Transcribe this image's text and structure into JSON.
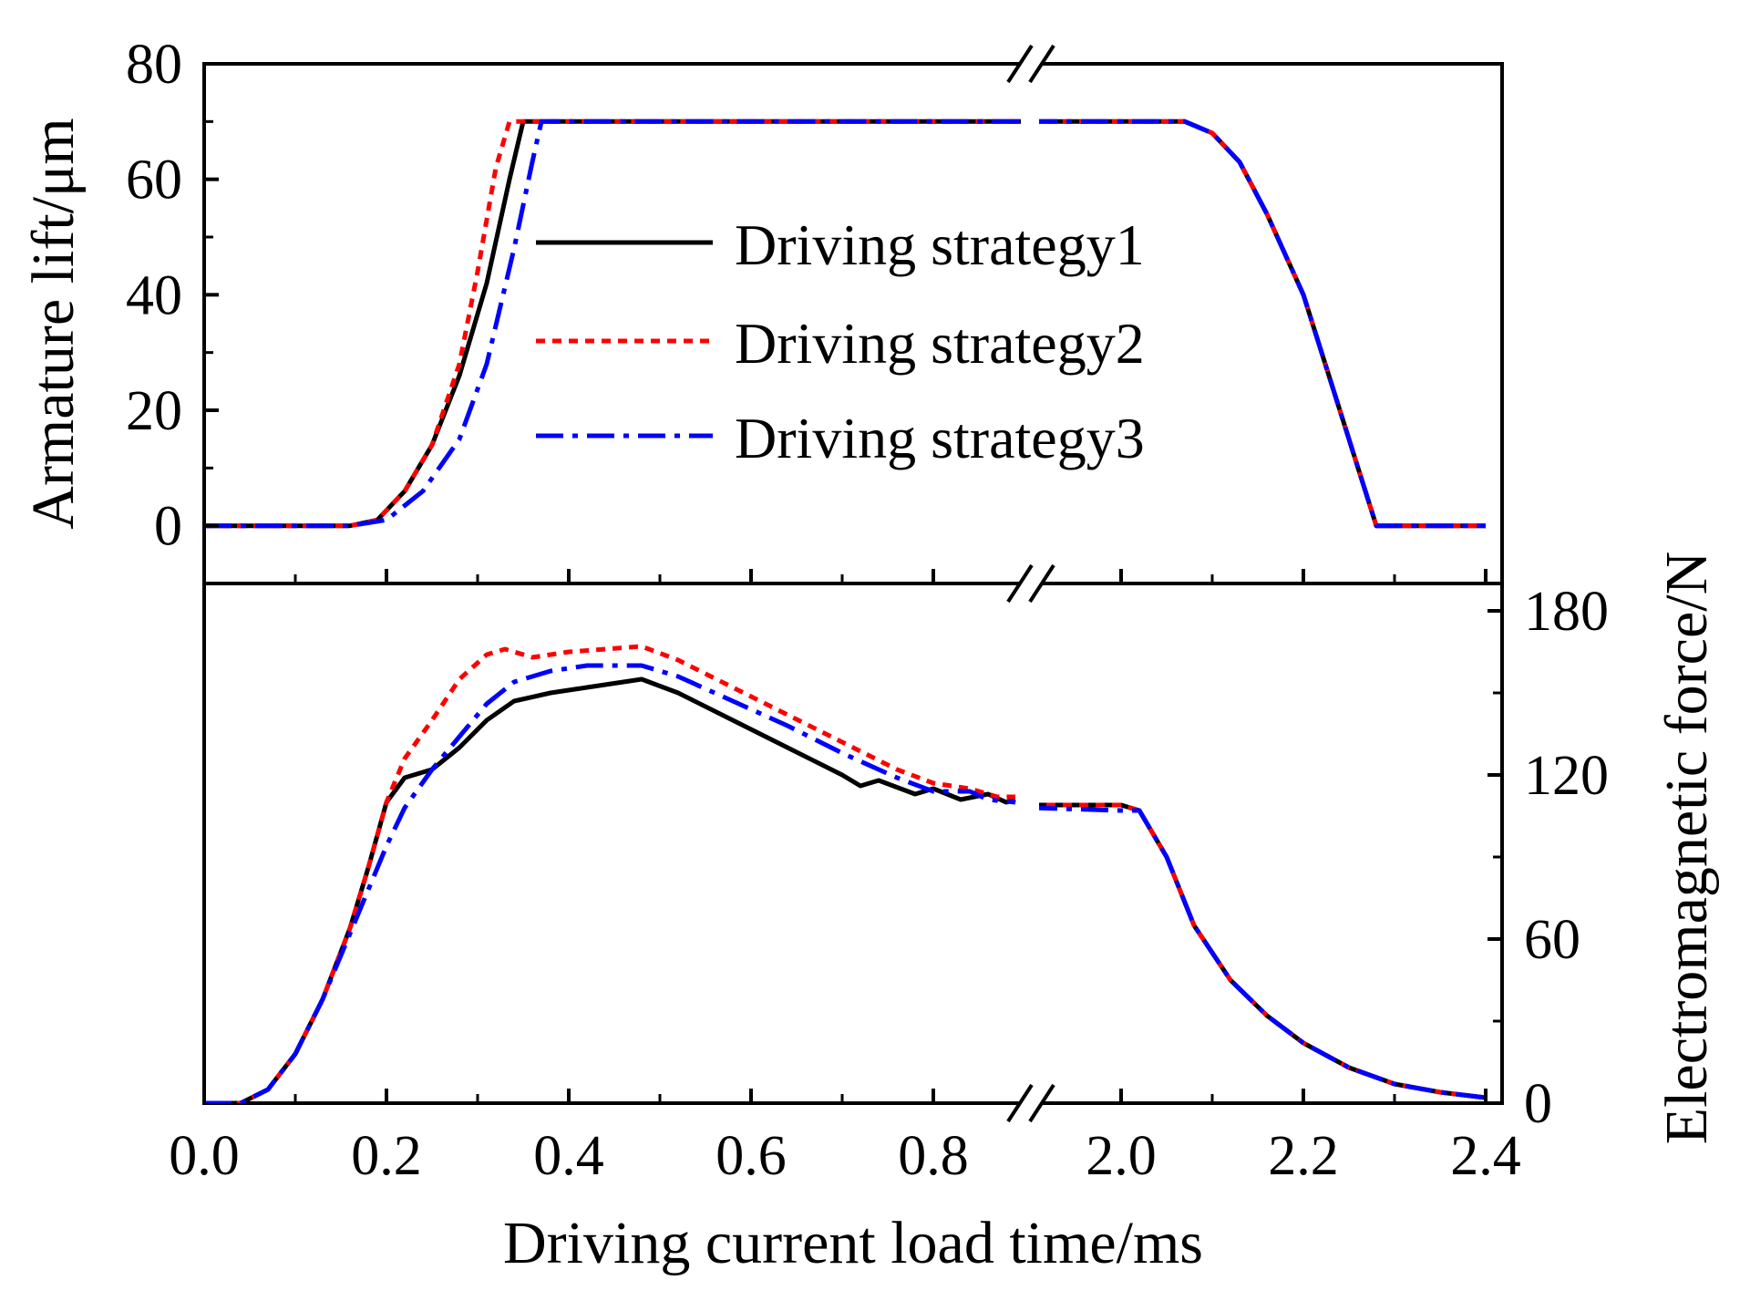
{
  "chart_data": [
    {
      "type": "line",
      "panel": "top",
      "ylabel": "Armature lift/μm",
      "ylim": [
        -10,
        80
      ],
      "yticks": [
        0,
        20,
        40,
        60,
        80
      ],
      "xlabel": "Driving current load time/ms",
      "x_segments": [
        [
          0.0,
          0.9
        ],
        [
          1.9,
          2.4
        ]
      ],
      "legend_position": "center",
      "series": [
        {
          "name": "Driving strategy1",
          "color": "#000000",
          "dash": "solid",
          "points": [
            [
              0,
              0
            ],
            [
              0.16,
              0
            ],
            [
              0.19,
              1
            ],
            [
              0.22,
              6
            ],
            [
              0.25,
              14
            ],
            [
              0.28,
              26
            ],
            [
              0.31,
              42
            ],
            [
              0.335,
              60
            ],
            [
              0.35,
              70
            ],
            [
              0.9,
              70
            ],
            [
              1.9,
              70
            ],
            [
              2.07,
              70
            ],
            [
              2.1,
              68
            ],
            [
              2.13,
              63
            ],
            [
              2.16,
              54
            ],
            [
              2.2,
              40
            ],
            [
              2.24,
              20
            ],
            [
              2.28,
              0
            ],
            [
              2.4,
              0
            ]
          ]
        },
        {
          "name": "Driving strategy2",
          "color": "#ff0000",
          "dash": "dotted",
          "points": [
            [
              0,
              0
            ],
            [
              0.16,
              0
            ],
            [
              0.19,
              1
            ],
            [
              0.22,
              6
            ],
            [
              0.25,
              14
            ],
            [
              0.28,
              28
            ],
            [
              0.3,
              44
            ],
            [
              0.32,
              62
            ],
            [
              0.335,
              70
            ],
            [
              0.9,
              70
            ],
            [
              1.9,
              70
            ],
            [
              2.07,
              70
            ],
            [
              2.1,
              68
            ],
            [
              2.13,
              63
            ],
            [
              2.16,
              54
            ],
            [
              2.2,
              40
            ],
            [
              2.24,
              20
            ],
            [
              2.28,
              0
            ],
            [
              2.4,
              0
            ]
          ]
        },
        {
          "name": "Driving strategy3",
          "color": "#0000ff",
          "dash": "dashdot",
          "points": [
            [
              0,
              0
            ],
            [
              0.16,
              0
            ],
            [
              0.2,
              1
            ],
            [
              0.24,
              6
            ],
            [
              0.28,
              15
            ],
            [
              0.31,
              28
            ],
            [
              0.34,
              48
            ],
            [
              0.36,
              63
            ],
            [
              0.37,
              70
            ],
            [
              0.9,
              70
            ],
            [
              1.9,
              70
            ],
            [
              2.07,
              70
            ],
            [
              2.1,
              68
            ],
            [
              2.13,
              63
            ],
            [
              2.16,
              54
            ],
            [
              2.2,
              40
            ],
            [
              2.24,
              20
            ],
            [
              2.28,
              0
            ],
            [
              2.4,
              0
            ]
          ]
        }
      ]
    },
    {
      "type": "line",
      "panel": "bottom",
      "ylabel": "Electromagnetic force/N",
      "ylim": [
        0,
        190
      ],
      "yticks": [
        0,
        60,
        120,
        180
      ],
      "xlabel": "Driving current load time/ms",
      "xticks": [
        "0.0",
        "0.2",
        "0.4",
        "0.6",
        "0.8",
        "2.0",
        "2.2",
        "2.4"
      ],
      "x_segments": [
        [
          0.0,
          0.9
        ],
        [
          1.9,
          2.4
        ]
      ],
      "series": [
        {
          "name": "Driving strategy1",
          "color": "#000000",
          "dash": "solid",
          "points": [
            [
              0,
              0
            ],
            [
              0.04,
              0
            ],
            [
              0.07,
              5
            ],
            [
              0.1,
              18
            ],
            [
              0.13,
              38
            ],
            [
              0.16,
              64
            ],
            [
              0.18,
              86
            ],
            [
              0.2,
              110
            ],
            [
              0.22,
              119
            ],
            [
              0.25,
              122
            ],
            [
              0.28,
              130
            ],
            [
              0.31,
              140
            ],
            [
              0.34,
              147
            ],
            [
              0.38,
              150
            ],
            [
              0.42,
              152
            ],
            [
              0.46,
              154
            ],
            [
              0.48,
              155
            ],
            [
              0.52,
              150
            ],
            [
              0.58,
              140
            ],
            [
              0.64,
              130
            ],
            [
              0.7,
              120
            ],
            [
              0.72,
              116
            ],
            [
              0.74,
              118
            ],
            [
              0.78,
              113
            ],
            [
              0.8,
              115
            ],
            [
              0.83,
              111
            ],
            [
              0.86,
              113
            ],
            [
              0.88,
              110
            ],
            [
              0.89,
              111
            ],
            [
              1.9,
              109
            ],
            [
              2.0,
              109
            ],
            [
              2.02,
              107
            ],
            [
              2.05,
              90
            ],
            [
              2.08,
              65
            ],
            [
              2.12,
              45
            ],
            [
              2.16,
              32
            ],
            [
              2.2,
              22
            ],
            [
              2.25,
              13
            ],
            [
              2.3,
              7
            ],
            [
              2.35,
              4
            ],
            [
              2.4,
              2
            ]
          ]
        },
        {
          "name": "Driving strategy2",
          "color": "#ff0000",
          "dash": "dotted",
          "points": [
            [
              0,
              0
            ],
            [
              0.04,
              0
            ],
            [
              0.07,
              5
            ],
            [
              0.1,
              18
            ],
            [
              0.13,
              38
            ],
            [
              0.16,
              64
            ],
            [
              0.18,
              86
            ],
            [
              0.2,
              110
            ],
            [
              0.22,
              126
            ],
            [
              0.25,
              140
            ],
            [
              0.28,
              155
            ],
            [
              0.31,
              164
            ],
            [
              0.33,
              166
            ],
            [
              0.36,
              163
            ],
            [
              0.4,
              165
            ],
            [
              0.44,
              166
            ],
            [
              0.48,
              167
            ],
            [
              0.52,
              162
            ],
            [
              0.58,
              152
            ],
            [
              0.64,
              142
            ],
            [
              0.7,
              132
            ],
            [
              0.76,
              122
            ],
            [
              0.8,
              117
            ],
            [
              0.84,
              115
            ],
            [
              0.87,
              112
            ],
            [
              0.89,
              112
            ],
            [
              1.9,
              109
            ],
            [
              2.0,
              109
            ],
            [
              2.02,
              107
            ],
            [
              2.05,
              90
            ],
            [
              2.08,
              65
            ],
            [
              2.12,
              45
            ],
            [
              2.16,
              32
            ],
            [
              2.2,
              22
            ],
            [
              2.25,
              13
            ],
            [
              2.3,
              7
            ],
            [
              2.35,
              4
            ],
            [
              2.4,
              2
            ]
          ]
        },
        {
          "name": "Driving strategy3",
          "color": "#0000ff",
          "dash": "dashdot",
          "points": [
            [
              0,
              0
            ],
            [
              0.04,
              0
            ],
            [
              0.07,
              5
            ],
            [
              0.1,
              18
            ],
            [
              0.13,
              38
            ],
            [
              0.16,
              62
            ],
            [
              0.18,
              78
            ],
            [
              0.2,
              94
            ],
            [
              0.22,
              108
            ],
            [
              0.25,
              122
            ],
            [
              0.28,
              134
            ],
            [
              0.31,
              146
            ],
            [
              0.34,
              154
            ],
            [
              0.38,
              158
            ],
            [
              0.42,
              160
            ],
            [
              0.46,
              160
            ],
            [
              0.48,
              160
            ],
            [
              0.52,
              156
            ],
            [
              0.58,
              147
            ],
            [
              0.64,
              138
            ],
            [
              0.7,
              128
            ],
            [
              0.76,
              119
            ],
            [
              0.8,
              114
            ],
            [
              0.84,
              114
            ],
            [
              0.86,
              111
            ],
            [
              0.89,
              110
            ],
            [
              1.9,
              108
            ],
            [
              2.0,
              107
            ],
            [
              2.02,
              107
            ],
            [
              2.05,
              90
            ],
            [
              2.08,
              65
            ],
            [
              2.12,
              45
            ],
            [
              2.16,
              32
            ],
            [
              2.2,
              22
            ],
            [
              2.25,
              13
            ],
            [
              2.3,
              7
            ],
            [
              2.35,
              4
            ],
            [
              2.4,
              2
            ]
          ]
        }
      ]
    }
  ]
}
